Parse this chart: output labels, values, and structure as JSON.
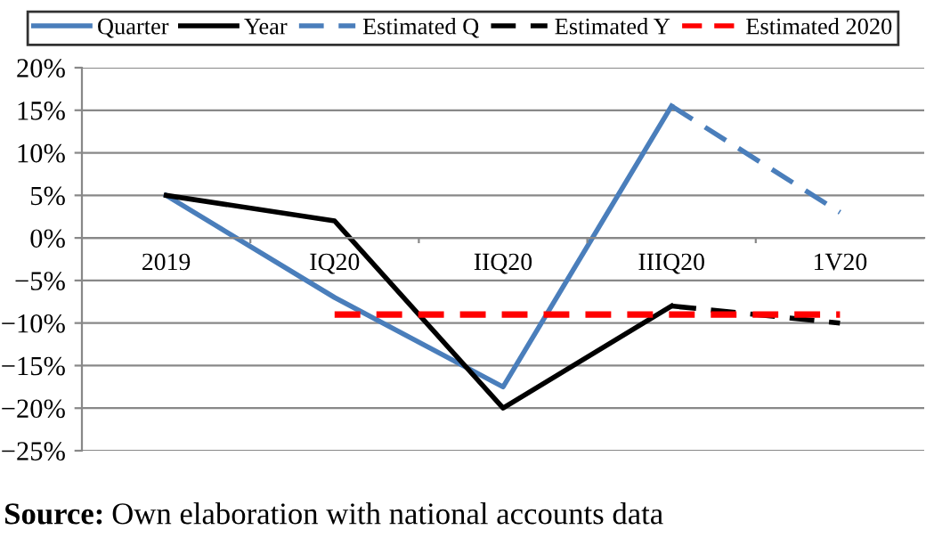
{
  "chart_data": {
    "type": "line",
    "categories": [
      "2019",
      "IQ20",
      "IIQ20",
      "IIIQ20",
      "1V20"
    ],
    "series": [
      {
        "name": "Quarter",
        "color": "#4a7ebb",
        "line_style": "solid",
        "values": [
          5,
          -7,
          -17.5,
          15.5,
          null
        ]
      },
      {
        "name": "Year",
        "color": "#000000",
        "line_style": "solid",
        "values": [
          5,
          2,
          -20,
          -8,
          null
        ]
      },
      {
        "name": "Estimated Q",
        "color": "#4a7ebb",
        "line_style": "dashed",
        "values": [
          null,
          null,
          null,
          15.5,
          3
        ]
      },
      {
        "name": "Estimated Y",
        "color": "#000000",
        "line_style": "dashed",
        "values": [
          null,
          null,
          null,
          -8,
          -10
        ]
      },
      {
        "name": "Estimated 2020",
        "color": "#ff0000",
        "line_style": "dashed",
        "values": [
          null,
          -9,
          -9,
          -9,
          -9
        ]
      }
    ],
    "ylim": [
      -25,
      20
    ],
    "yticks": [
      {
        "value": -25,
        "label": "−25%"
      },
      {
        "value": -20,
        "label": "−20%"
      },
      {
        "value": -15,
        "label": "−15%"
      },
      {
        "value": -10,
        "label": "−10%"
      },
      {
        "value": -5,
        "label": "−5%"
      },
      {
        "value": 0,
        "label": "0%"
      },
      {
        "value": 5,
        "label": "5%"
      },
      {
        "value": 10,
        "label": "10%"
      },
      {
        "value": 15,
        "label": "15%"
      },
      {
        "value": 20,
        "label": "20%"
      }
    ],
    "grid": "y",
    "legend": "top",
    "marker": "none",
    "annotations": [
      "Source: Own elaboration with national accounts data"
    ]
  }
}
